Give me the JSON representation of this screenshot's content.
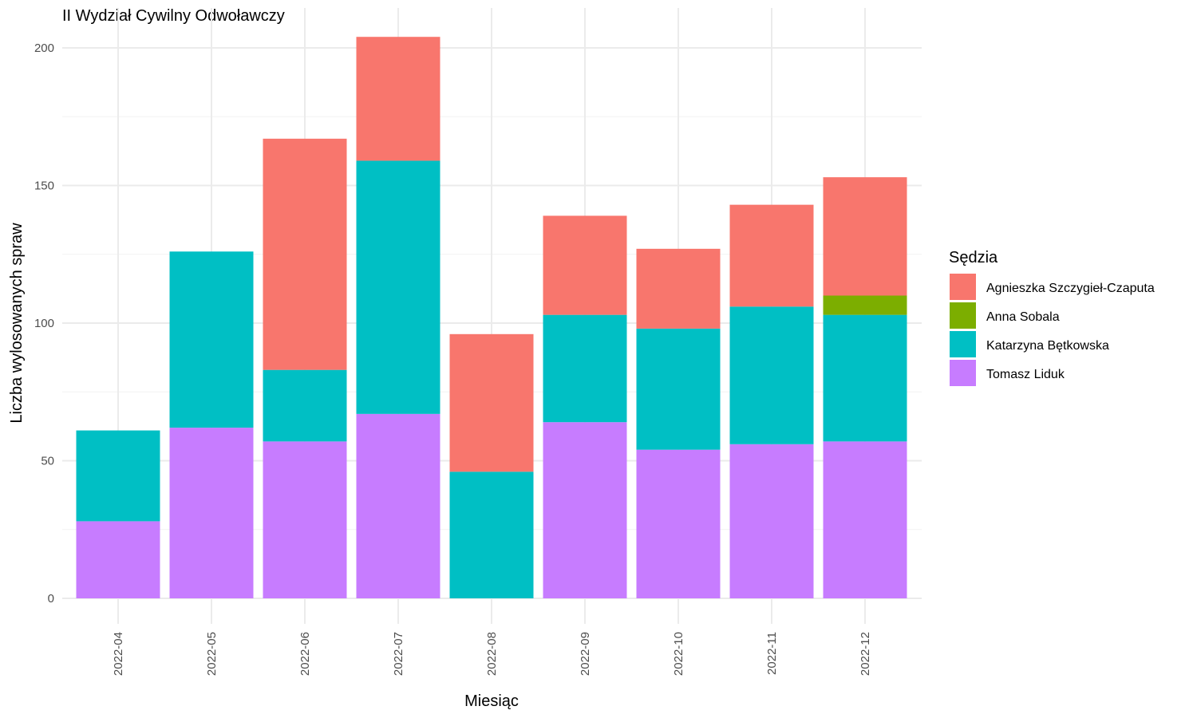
{
  "chart_data": {
    "type": "bar",
    "stacked": true,
    "title": "II Wydział Cywilny Odwoławczy",
    "xlabel": "Miesiąc",
    "ylabel": "Liczba wylosowanych spraw",
    "ylim": [
      0,
      210
    ],
    "yticks": [
      0,
      50,
      100,
      150,
      200
    ],
    "grid": true,
    "legend": {
      "title": "Sędzia",
      "position": "right"
    },
    "categories": [
      "2022-04",
      "2022-05",
      "2022-06",
      "2022-07",
      "2022-08",
      "2022-09",
      "2022-10",
      "2022-11",
      "2022-12"
    ],
    "series": [
      {
        "name": "Tomasz Liduk",
        "color": "#C77CFF",
        "values": [
          28,
          62,
          57,
          67,
          0,
          64,
          54,
          56,
          57
        ]
      },
      {
        "name": "Katarzyna Bętkowska",
        "color": "#00BFC4",
        "values": [
          33,
          64,
          26,
          92,
          46,
          39,
          44,
          50,
          46
        ]
      },
      {
        "name": "Anna Sobala",
        "color": "#7CAE00",
        "values": [
          0,
          0,
          0,
          0,
          0,
          0,
          0,
          0,
          7
        ]
      },
      {
        "name": "Agnieszka Szczygieł-Czaputa",
        "color": "#F8766D",
        "values": [
          0,
          0,
          84,
          45,
          50,
          36,
          29,
          37,
          43
        ]
      }
    ],
    "legend_order": [
      "Agnieszka Szczygieł-Czaputa",
      "Anna Sobala",
      "Katarzyna Bętkowska",
      "Tomasz Liduk"
    ]
  }
}
